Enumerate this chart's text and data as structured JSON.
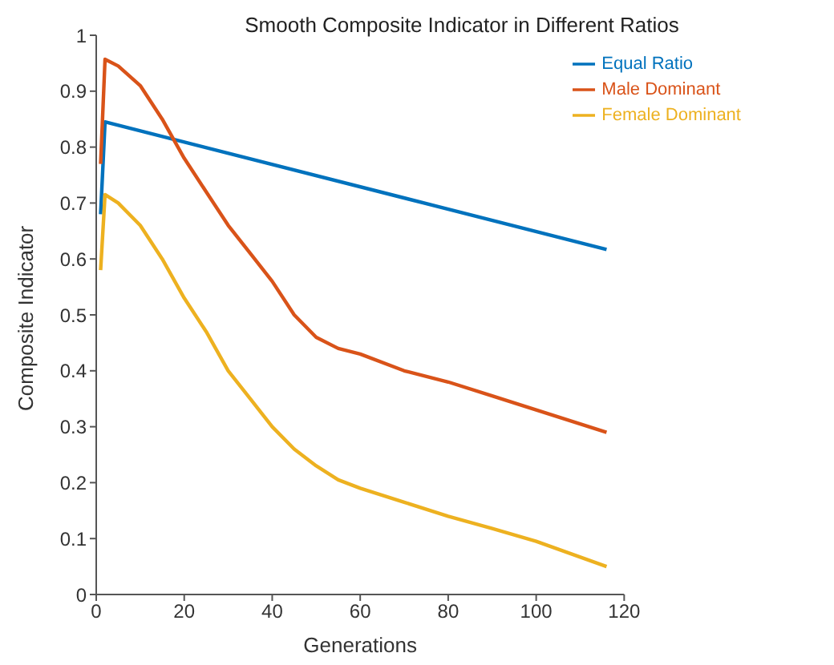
{
  "chart_data": {
    "type": "line",
    "title": "Smooth Composite Indicator in Different Ratios",
    "xlabel": "Generations",
    "ylabel": "Composite Indicator",
    "xlim": [
      0,
      120
    ],
    "xticks": [
      0,
      20,
      40,
      60,
      80,
      100,
      120
    ],
    "ylim": [
      0,
      1
    ],
    "yticks": [
      0,
      0.1,
      0.2,
      0.3,
      0.4,
      0.5,
      0.6,
      0.7,
      0.8,
      0.9,
      1
    ],
    "grid": false,
    "legend": "top right",
    "marker": "none",
    "line_style": "solid",
    "series": [
      {
        "name": "Equal Ratio",
        "color": "#0072bd",
        "x": [
          1,
          2,
          116
        ],
        "values": [
          0.68,
          0.845,
          0.617
        ]
      },
      {
        "name": "Male Dominant",
        "color": "#d95319",
        "x": [
          1,
          2,
          5,
          10,
          15,
          20,
          25,
          30,
          35,
          40,
          45,
          50,
          55,
          60,
          70,
          80,
          90,
          100,
          116
        ],
        "values": [
          0.77,
          0.957,
          0.945,
          0.91,
          0.85,
          0.78,
          0.72,
          0.66,
          0.61,
          0.56,
          0.5,
          0.46,
          0.44,
          0.43,
          0.4,
          0.38,
          0.355,
          0.33,
          0.29
        ]
      },
      {
        "name": "Female Dominant",
        "color": "#edb120",
        "x": [
          1,
          2,
          5,
          10,
          15,
          20,
          25,
          30,
          35,
          40,
          45,
          50,
          55,
          60,
          70,
          80,
          90,
          100,
          116
        ],
        "values": [
          0.58,
          0.715,
          0.7,
          0.66,
          0.6,
          0.53,
          0.47,
          0.4,
          0.35,
          0.3,
          0.26,
          0.23,
          0.205,
          0.19,
          0.165,
          0.14,
          0.118,
          0.095,
          0.05
        ]
      }
    ]
  }
}
